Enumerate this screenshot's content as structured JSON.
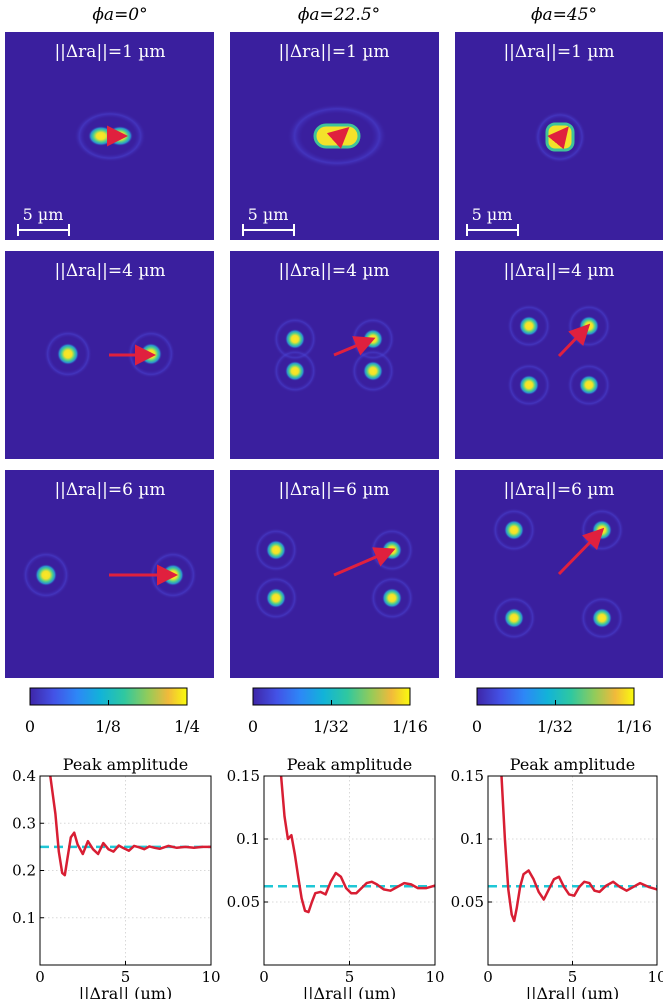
{
  "columns": [
    {
      "phi_label": "ϕa=0°"
    },
    {
      "phi_label": "ϕa=22.5°"
    },
    {
      "phi_label": "ϕa=45°"
    }
  ],
  "panel_rows": [
    {
      "label": "||Δra||=1 µm"
    },
    {
      "label": "||Δra||=4 µm"
    },
    {
      "label": "||Δra||=6 µm"
    }
  ],
  "scalebar_label": "5 µm",
  "colors": {
    "background": "#3a1f9e",
    "spot_core": "#f9e721",
    "spot_mid": "#22c4a8",
    "arrow": "#e0203e",
    "curve": "#d81e33",
    "reference": "#1fc7d6"
  },
  "colorbars": [
    {
      "ticks": [
        "0",
        "1/8",
        "1/4"
      ]
    },
    {
      "ticks": [
        "0",
        "1/32",
        "1/16"
      ]
    },
    {
      "ticks": [
        "0",
        "1/32",
        "1/16"
      ]
    }
  ],
  "chart_data": [
    {
      "type": "line",
      "title": "Peak amplitude",
      "xlabel": "||Δra|| (µm)",
      "ylabel": "",
      "xlim": [
        0,
        10
      ],
      "ylim": [
        0,
        0.4
      ],
      "xticks": [
        "0",
        "5",
        "10"
      ],
      "yticks": [
        "0.1",
        "0.2",
        "0.3",
        "0.4"
      ],
      "grid": true,
      "reference_value": 0.25,
      "series": [
        {
          "x": [
            0.6,
            0.9,
            1.1,
            1.3,
            1.45,
            1.6,
            1.8,
            2.0,
            2.2,
            2.5,
            2.8,
            3.1,
            3.4,
            3.7,
            4.0,
            4.3,
            4.6,
            4.9,
            5.2,
            5.5,
            5.8,
            6.1,
            6.4,
            6.7,
            7.0,
            7.5,
            8.0,
            8.5,
            9.0,
            9.5,
            10.0
          ],
          "y": [
            0.4,
            0.32,
            0.24,
            0.195,
            0.19,
            0.225,
            0.27,
            0.28,
            0.255,
            0.235,
            0.262,
            0.245,
            0.235,
            0.258,
            0.245,
            0.24,
            0.253,
            0.247,
            0.242,
            0.252,
            0.249,
            0.245,
            0.251,
            0.248,
            0.246,
            0.252,
            0.248,
            0.25,
            0.248,
            0.25,
            0.25
          ]
        }
      ]
    },
    {
      "type": "line",
      "title": "Peak amplitude",
      "xlabel": "||Δra|| (µm)",
      "ylabel": "",
      "xlim": [
        0,
        10
      ],
      "ylim": [
        0,
        0.15
      ],
      "xticks": [
        "0",
        "5",
        "10"
      ],
      "yticks": [
        "0.05",
        "0.1",
        "0.15"
      ],
      "grid": true,
      "reference_value": 0.0625,
      "series": [
        {
          "x": [
            1.0,
            1.2,
            1.4,
            1.6,
            1.8,
            2.0,
            2.2,
            2.4,
            2.6,
            2.8,
            3.0,
            3.3,
            3.6,
            3.9,
            4.2,
            4.5,
            4.8,
            5.1,
            5.4,
            5.7,
            6.0,
            6.3,
            6.6,
            7.0,
            7.4,
            7.8,
            8.2,
            8.6,
            9.0,
            9.5,
            10.0
          ],
          "y": [
            0.15,
            0.118,
            0.1,
            0.103,
            0.088,
            0.07,
            0.053,
            0.043,
            0.042,
            0.05,
            0.057,
            0.058,
            0.056,
            0.066,
            0.073,
            0.07,
            0.061,
            0.057,
            0.057,
            0.061,
            0.065,
            0.066,
            0.064,
            0.06,
            0.059,
            0.062,
            0.065,
            0.064,
            0.061,
            0.061,
            0.063
          ]
        }
      ]
    },
    {
      "type": "line",
      "title": "Peak amplitude",
      "xlabel": "||Δra|| (µm)",
      "ylabel": "",
      "xlim": [
        0,
        10
      ],
      "ylim": [
        0,
        0.15
      ],
      "xticks": [
        "0",
        "5",
        "10"
      ],
      "yticks": [
        "0.05",
        "0.1",
        "0.15"
      ],
      "grid": true,
      "reference_value": 0.0625,
      "series": [
        {
          "x": [
            0.8,
            1.0,
            1.2,
            1.4,
            1.55,
            1.7,
            1.9,
            2.1,
            2.4,
            2.7,
            3.0,
            3.3,
            3.6,
            3.9,
            4.2,
            4.5,
            4.8,
            5.1,
            5.4,
            5.7,
            6.0,
            6.3,
            6.6,
            7.0,
            7.4,
            7.8,
            8.2,
            8.6,
            9.0,
            9.5,
            10.0
          ],
          "y": [
            0.15,
            0.1,
            0.06,
            0.04,
            0.035,
            0.045,
            0.062,
            0.072,
            0.075,
            0.068,
            0.058,
            0.052,
            0.06,
            0.068,
            0.07,
            0.062,
            0.056,
            0.055,
            0.062,
            0.066,
            0.065,
            0.059,
            0.058,
            0.063,
            0.066,
            0.062,
            0.059,
            0.062,
            0.065,
            0.062,
            0.06
          ]
        }
      ]
    }
  ]
}
